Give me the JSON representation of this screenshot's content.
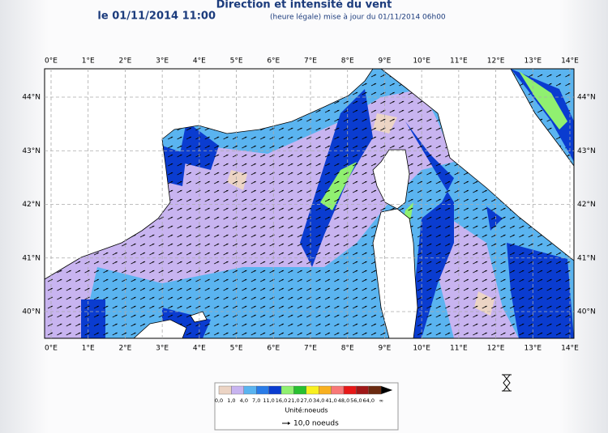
{
  "title": "Direction et intensité du vent",
  "subtitle": {
    "date": "le 01/11/2014 11:00",
    "note": "(heure légale) mise à jour du 01/11/2014 06h00"
  },
  "map": {
    "lon_labels": [
      "0°E",
      "1°E",
      "2°E",
      "3°E",
      "4°E",
      "5°E",
      "6°E",
      "7°E",
      "8°E",
      "9°E",
      "10°E",
      "11°E",
      "12°E",
      "13°E",
      "14°E"
    ],
    "lat_labels": [
      "44°N",
      "43°N",
      "42°N",
      "41°N",
      "40°N"
    ]
  },
  "legend": {
    "bins": [
      "0,0",
      "1,0",
      "4,0",
      "7,0",
      "11,0",
      "16,0",
      "21,0",
      "27,0",
      "34,0",
      "41,0",
      "48,0",
      "56,0",
      "64,0",
      "∞"
    ],
    "colors": [
      "#ecd4c4",
      "#c8b4f0",
      "#5ab4f0",
      "#2a7ce8",
      "#0a3cd0",
      "#90f070",
      "#28c030",
      "#f8f020",
      "#f8b020",
      "#f87878",
      "#e81818",
      "#a01818",
      "#6a2a10"
    ],
    "unit": "Unité:noeuds",
    "arrow": "10,0 noeuds"
  }
}
